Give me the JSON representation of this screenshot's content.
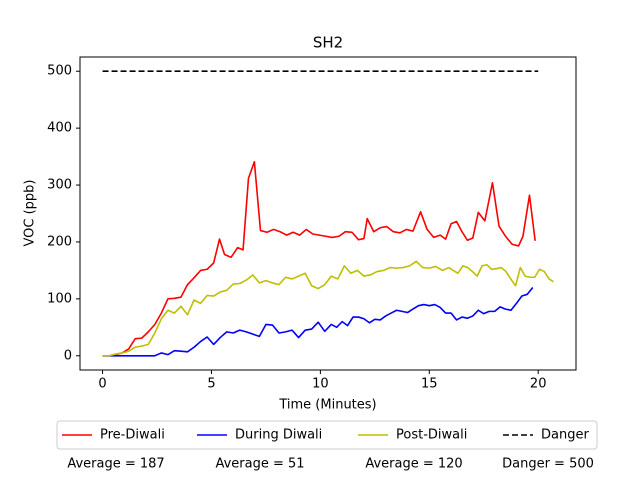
{
  "chart_data": {
    "type": "line",
    "title": "SH2",
    "xlabel": "Time (Minutes)",
    "ylabel": "VOC (ppb)",
    "xlim": [
      -1.035,
      21.735
    ],
    "ylim": [
      -25,
      525
    ],
    "xticks": [
      0,
      5,
      10,
      15,
      20
    ],
    "yticks": [
      0,
      100,
      200,
      300,
      400,
      500
    ],
    "grid": false,
    "legend": "below",
    "series": [
      {
        "name": "Pre-Diwali",
        "color": "#ff0000",
        "dashed": false,
        "x": [
          0,
          0.3,
          0.6,
          0.9,
          1.2,
          1.5,
          1.8,
          2.1,
          2.4,
          2.7,
          3.0,
          3.3,
          3.6,
          3.9,
          4.2,
          4.5,
          4.8,
          5.1,
          5.37,
          5.6,
          5.9,
          6.2,
          6.45,
          6.7,
          6.97,
          7.25,
          7.55,
          7.85,
          8.15,
          8.45,
          8.75,
          9.05,
          9.35,
          9.65,
          9.95,
          10.25,
          10.55,
          10.85,
          11.15,
          11.45,
          11.75,
          12.0,
          12.15,
          12.45,
          12.75,
          13.05,
          13.35,
          13.65,
          13.95,
          14.25,
          14.6,
          14.9,
          15.2,
          15.5,
          15.75,
          16.0,
          16.25,
          16.5,
          16.75,
          17.0,
          17.25,
          17.55,
          17.9,
          18.2,
          18.5,
          18.8,
          19.1,
          19.3,
          19.6,
          19.86
        ],
        "values": [
          0,
          0,
          2,
          5,
          12,
          30,
          31,
          42,
          55,
          75,
          100,
          101,
          103,
          125,
          137,
          150,
          152,
          163,
          205,
          178,
          173,
          190,
          186,
          312,
          341,
          220,
          217,
          222,
          218,
          212,
          217,
          212,
          222,
          214,
          212,
          210,
          208,
          210,
          218,
          217,
          204,
          206,
          241,
          218,
          225,
          227,
          218,
          216,
          222,
          219,
          253,
          222,
          208,
          212,
          205,
          232,
          236,
          218,
          203,
          207,
          252,
          237,
          304,
          228,
          210,
          196,
          193,
          210,
          282,
          202
        ]
      },
      {
        "name": "During Diwali",
        "color": "#0000ff",
        "dashed": false,
        "x": [
          0,
          0.3,
          0.6,
          0.9,
          1.2,
          1.5,
          1.8,
          2.1,
          2.4,
          2.7,
          3.0,
          3.3,
          3.6,
          3.9,
          4.2,
          4.5,
          4.8,
          5.1,
          5.4,
          5.7,
          6.0,
          6.3,
          6.6,
          6.9,
          7.2,
          7.5,
          7.8,
          8.1,
          8.4,
          8.7,
          9.0,
          9.3,
          9.6,
          9.9,
          10.2,
          10.5,
          10.75,
          11,
          11.25,
          11.5,
          11.75,
          12,
          12.25,
          12.5,
          12.75,
          13,
          13.25,
          13.5,
          13.75,
          14,
          14.25,
          14.5,
          14.75,
          15,
          15.25,
          15.5,
          15.75,
          16,
          16.25,
          16.5,
          16.75,
          17,
          17.25,
          17.5,
          17.75,
          18,
          18.25,
          18.5,
          18.75,
          19,
          19.25,
          19.5,
          19.75
        ],
        "values": [
          0,
          0,
          0,
          0,
          0,
          0,
          0,
          0,
          0,
          5,
          2,
          9,
          8,
          7,
          15,
          25,
          33,
          20,
          32,
          42,
          40,
          45,
          42,
          38,
          34,
          55,
          54,
          40,
          42,
          45,
          32,
          45,
          47,
          59,
          43,
          55,
          50,
          60,
          53,
          68,
          68,
          65,
          58,
          64,
          63,
          70,
          75,
          80,
          78,
          76,
          82,
          88,
          90,
          88,
          90,
          85,
          75,
          75,
          63,
          68,
          66,
          70,
          80,
          74,
          78,
          78,
          86,
          82,
          80,
          92,
          105,
          108,
          120
        ]
      },
      {
        "name": "Post-Diwali",
        "color": "#bfbf00",
        "dashed": false,
        "x": [
          0,
          0.3,
          0.6,
          0.9,
          1.2,
          1.5,
          1.8,
          2.1,
          2.4,
          2.7,
          3.0,
          3.3,
          3.6,
          3.9,
          4.2,
          4.5,
          4.8,
          5.1,
          5.4,
          5.7,
          6.0,
          6.3,
          6.6,
          6.9,
          7.2,
          7.5,
          7.8,
          8.1,
          8.4,
          8.7,
          9.0,
          9.3,
          9.6,
          9.9,
          10.2,
          10.5,
          10.8,
          11.1,
          11.4,
          11.7,
          12.0,
          12.3,
          12.6,
          12.9,
          13.2,
          13.5,
          13.8,
          14.1,
          14.4,
          14.7,
          15.0,
          15.3,
          15.6,
          15.9,
          16.1,
          16.32,
          16.54,
          16.76,
          16.98,
          17.2,
          17.42,
          17.64,
          17.86,
          18.08,
          18.3,
          18.52,
          18.74,
          18.96,
          19.18,
          19.4,
          19.62,
          19.84,
          20.06,
          20.28,
          20.5,
          20.7
        ],
        "values": [
          0,
          0,
          3,
          5,
          8,
          15,
          17,
          20,
          40,
          65,
          80,
          75,
          87,
          72,
          98,
          92,
          106,
          105,
          112,
          115,
          126,
          127,
          133,
          142,
          128,
          132,
          128,
          125,
          138,
          135,
          140,
          145,
          123,
          118,
          125,
          140,
          135,
          158,
          145,
          150,
          140,
          142,
          148,
          150,
          155,
          154,
          155,
          158,
          166,
          155,
          154,
          157,
          150,
          155,
          150,
          145,
          158,
          155,
          148,
          140,
          158,
          160,
          152,
          153,
          155,
          148,
          135,
          123,
          155,
          140,
          138,
          138,
          152,
          148,
          135,
          130
        ]
      },
      {
        "name": "Danger",
        "color": "#000000",
        "dashed": true,
        "x": [
          0,
          20
        ],
        "values": [
          500,
          500
        ]
      }
    ],
    "annotations": [
      "Average = 187",
      "Average = 51",
      "Average = 120",
      "Danger = 500"
    ]
  }
}
